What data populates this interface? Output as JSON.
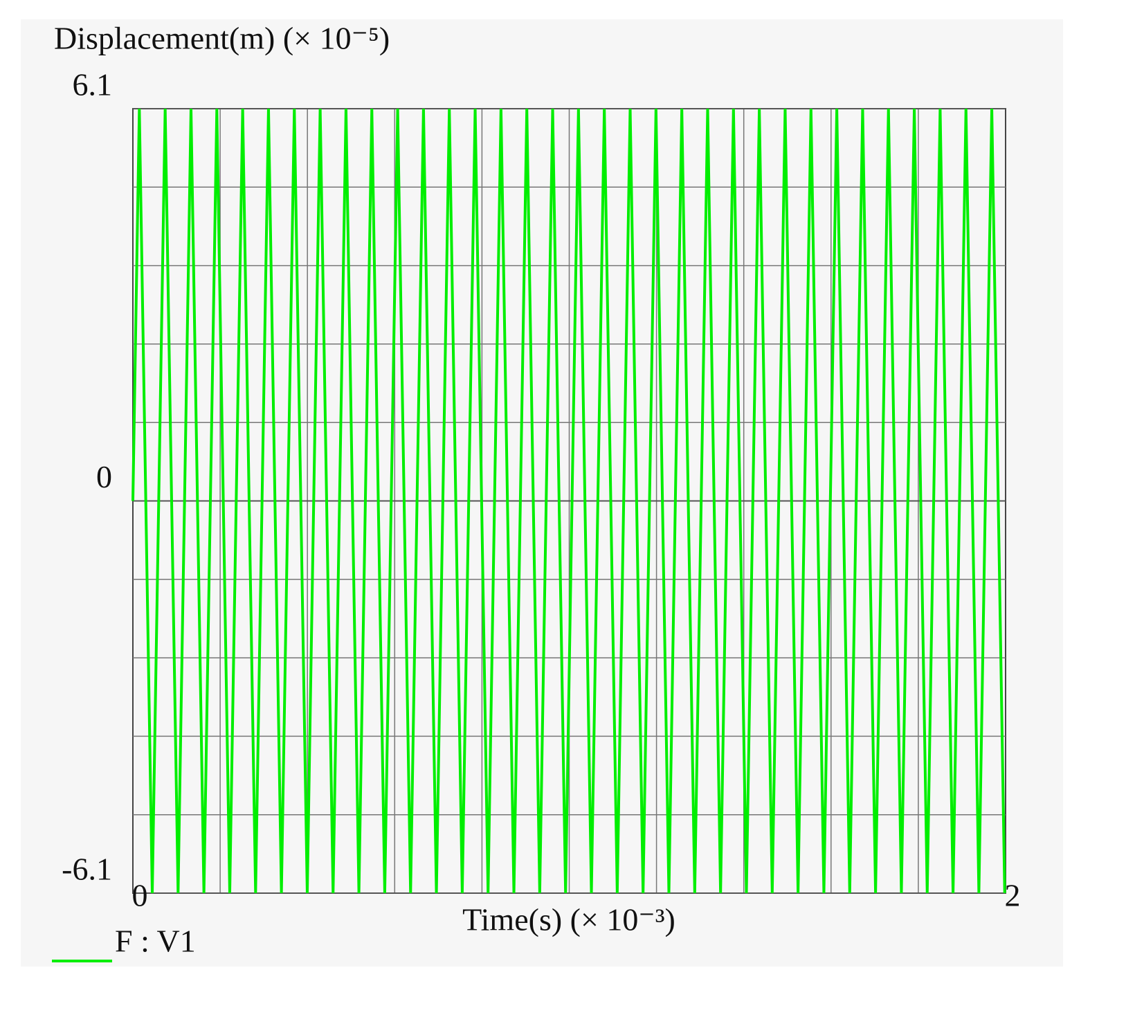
{
  "chart_data": {
    "type": "line",
    "ylabel": "Displacement(m) (× 10⁻⁵)",
    "xlabel": "Time(s) (× 10⁻³)",
    "xlim": [
      0,
      2
    ],
    "xticks": [
      0,
      2
    ],
    "ylim": [
      -6.1,
      6.1
    ],
    "yticks": [
      -6.1,
      0,
      6.1
    ],
    "grid": true,
    "legend": "bottom-left",
    "x": [
      0,
      0.0148,
      0.0444,
      0.074,
      0.1036,
      0.1332,
      0.1628,
      0.1924,
      0.222,
      0.2516,
      0.2812,
      0.3108,
      0.3404,
      0.37,
      0.3996,
      0.4292,
      0.4588,
      0.4884,
      0.518,
      0.5476,
      0.5772,
      0.6068,
      0.6364,
      0.666,
      0.6956,
      0.7252,
      0.7548,
      0.7844,
      0.814,
      0.8436,
      0.8732,
      0.9028,
      0.9324,
      0.962,
      0.9916,
      1.0212,
      1.0508,
      1.0804,
      1.11,
      1.1396,
      1.1692,
      1.1988,
      1.2284,
      1.258,
      1.2876,
      1.3172,
      1.3468,
      1.3764,
      1.406,
      1.4356,
      1.4652,
      1.4948,
      1.5244,
      1.554,
      1.5836,
      1.6132,
      1.6428,
      1.6724,
      1.702,
      1.7316,
      1.7612,
      1.7908,
      1.8204,
      1.85,
      1.8796,
      1.9092,
      1.9388,
      1.9684,
      1.998
    ],
    "series": [
      {
        "name": "F : V1",
        "color": "#00ee00",
        "values": [
          0,
          6.1,
          -6.1,
          6.1,
          -6.1,
          6.1,
          -6.1,
          6.1,
          -6.1,
          6.1,
          -6.1,
          6.1,
          -6.1,
          6.1,
          -6.1,
          6.1,
          -6.1,
          6.1,
          -6.1,
          6.1,
          -6.1,
          6.1,
          -6.1,
          6.1,
          -6.1,
          6.1,
          -6.1,
          6.1,
          -6.1,
          6.1,
          -6.1,
          6.1,
          -6.1,
          6.1,
          -6.1,
          6.1,
          -6.1,
          6.1,
          -6.1,
          6.1,
          -6.1,
          6.1,
          -6.1,
          6.1,
          -6.1,
          6.1,
          -6.1,
          6.1,
          -6.1,
          6.1,
          -6.1,
          6.1,
          -6.1,
          6.1,
          -6.1,
          6.1,
          -6.1,
          6.1,
          -6.1,
          6.1,
          -6.1,
          6.1,
          -6.1,
          6.1,
          -6.1,
          6.1,
          -6.1,
          6.1,
          -6.1
        ]
      }
    ]
  }
}
